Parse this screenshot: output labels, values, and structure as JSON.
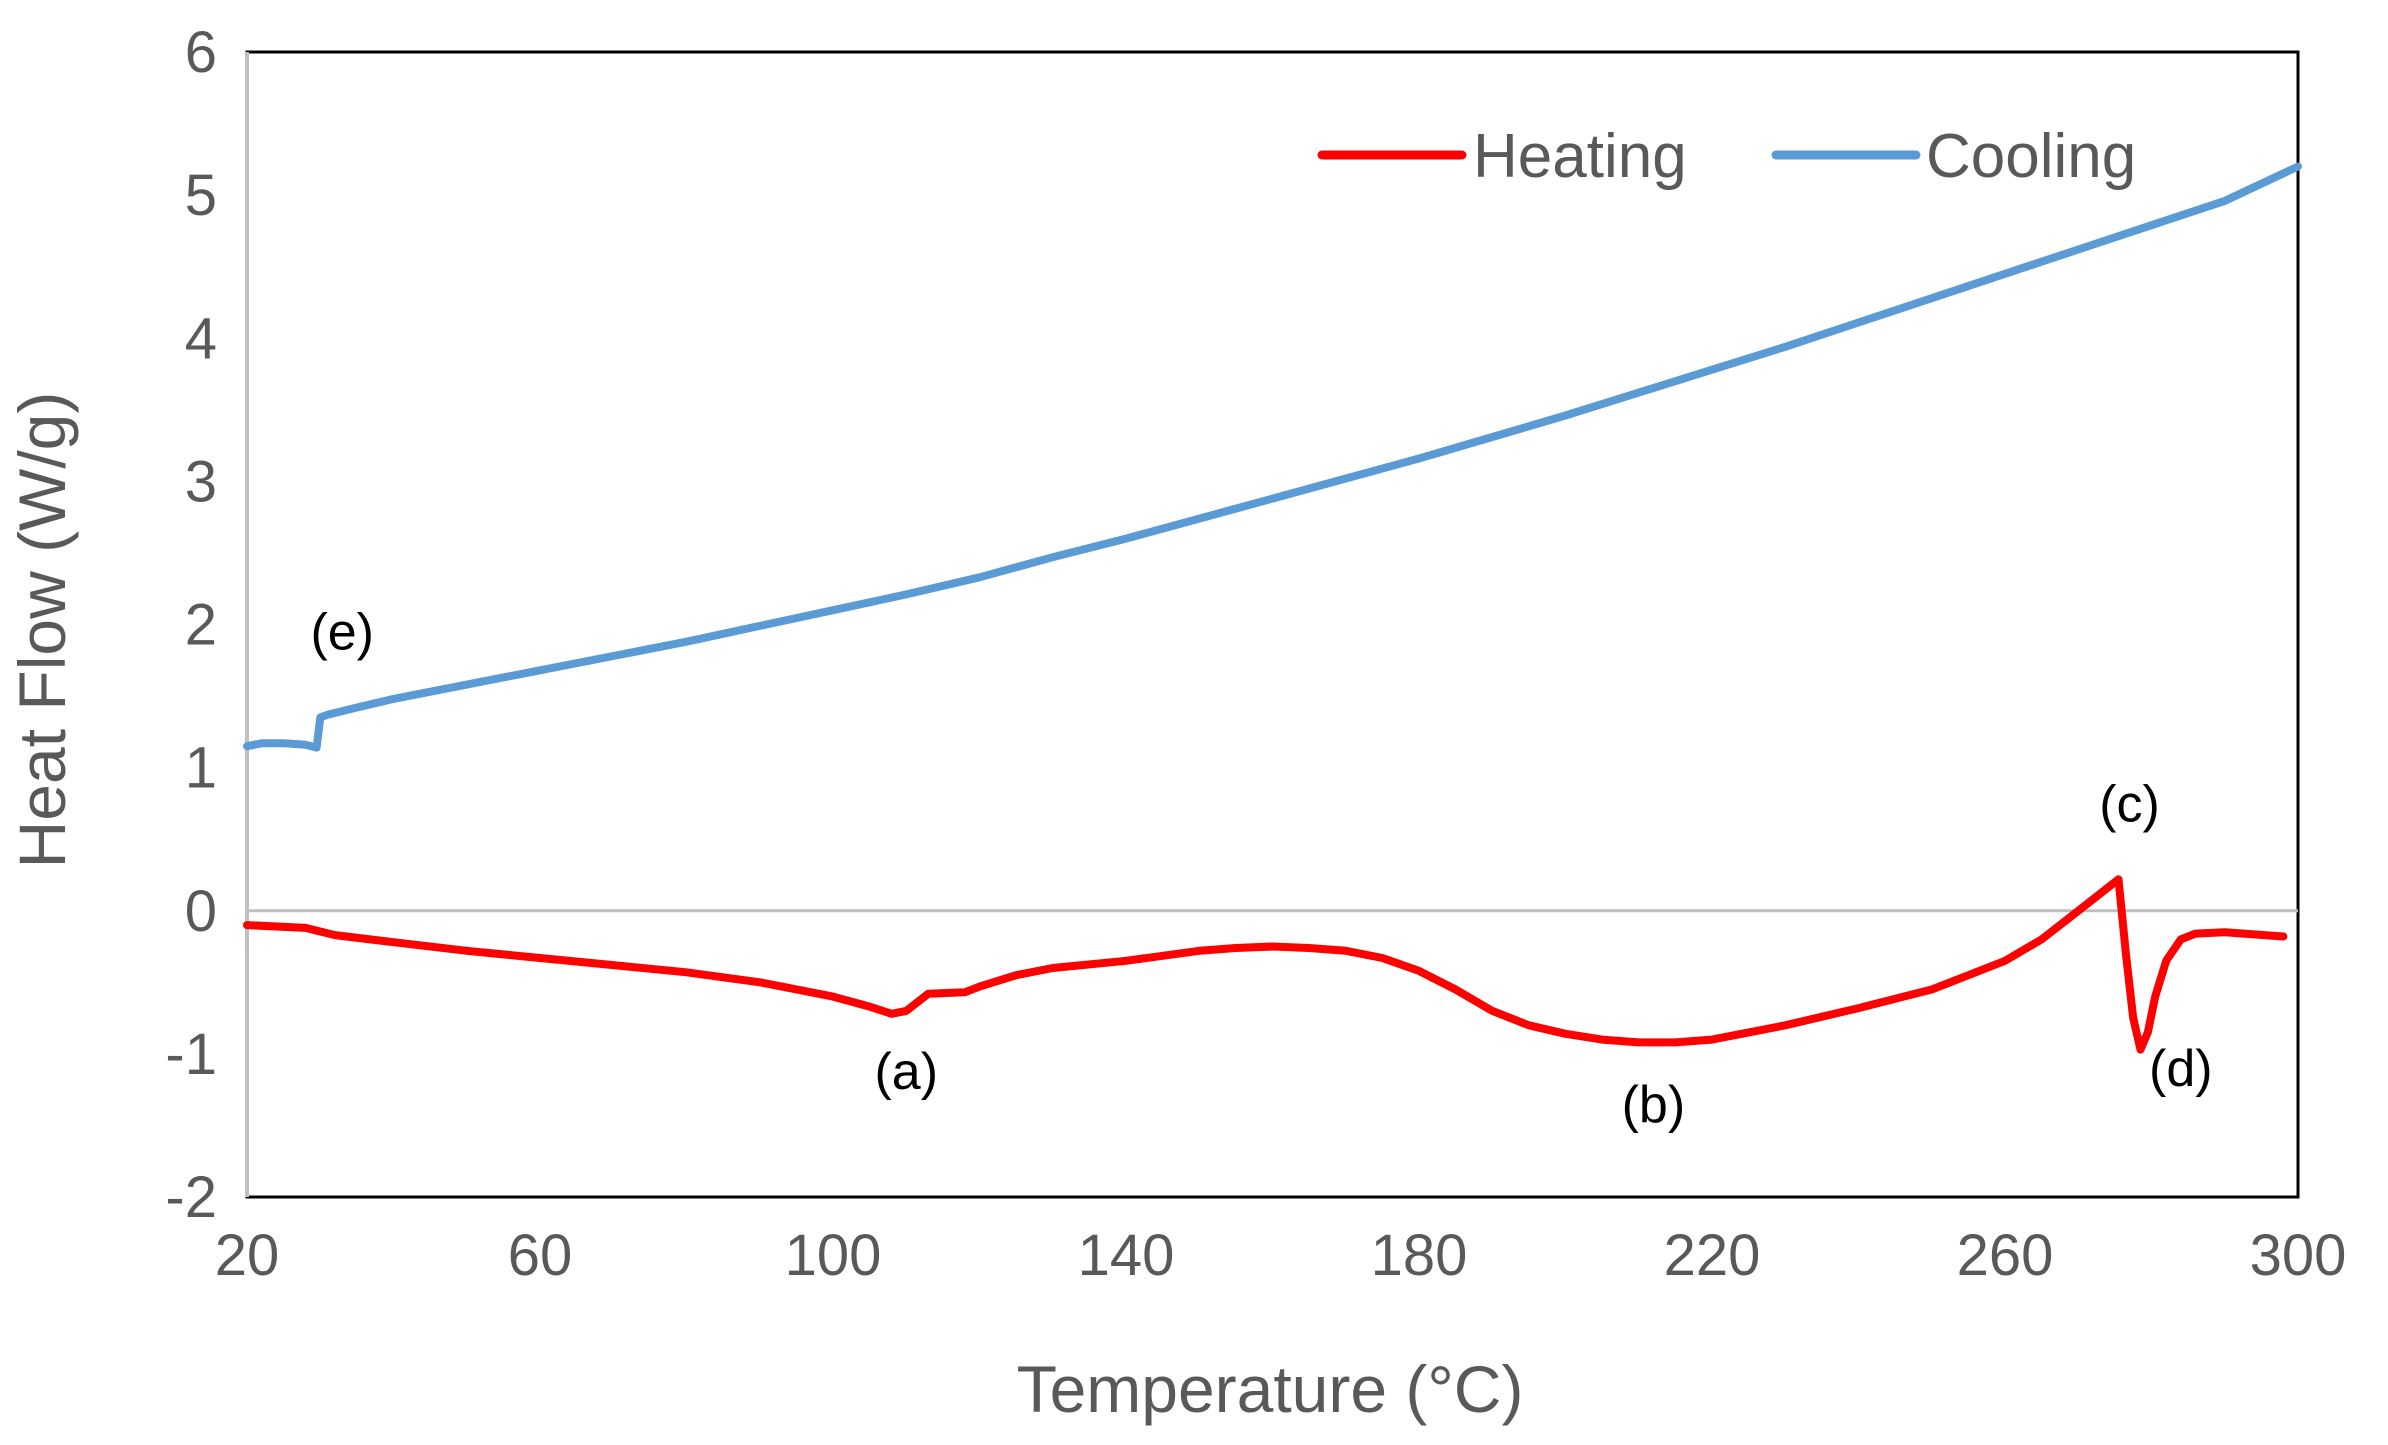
{
  "chart_data": {
    "type": "line",
    "title": "",
    "xlabel": "Temperature (°C)",
    "ylabel": "Heat Flow  (W/g)",
    "xlim": [
      20,
      300
    ],
    "ylim": [
      -2,
      6
    ],
    "xticks": [
      20,
      60,
      100,
      140,
      180,
      220,
      260,
      300
    ],
    "yticks": [
      -2,
      -1,
      0,
      1,
      2,
      3,
      4,
      5,
      6
    ],
    "grid": false,
    "legend_position": "top-right",
    "series": [
      {
        "name": "Heating",
        "color": "#ff0000",
        "x": [
          20,
          28,
          32,
          40,
          50,
          60,
          70,
          80,
          90,
          100,
          105,
          108,
          110,
          113,
          118,
          120,
          125,
          130,
          140,
          150,
          155,
          160,
          165,
          170,
          175,
          180,
          185,
          190,
          195,
          200,
          205,
          210,
          215,
          220,
          230,
          240,
          250,
          255,
          260,
          265,
          270,
          273,
          275.5,
          276.5,
          277.5,
          278.5,
          279.5,
          280.5,
          282,
          284,
          286,
          290,
          298
        ],
        "y": [
          -0.1,
          -0.12,
          -0.17,
          -0.22,
          -0.28,
          -0.33,
          -0.38,
          -0.43,
          -0.5,
          -0.6,
          -0.67,
          -0.72,
          -0.7,
          -0.58,
          -0.57,
          -0.53,
          -0.45,
          -0.4,
          -0.35,
          -0.28,
          -0.26,
          -0.25,
          -0.26,
          -0.28,
          -0.33,
          -0.42,
          -0.55,
          -0.7,
          -0.8,
          -0.86,
          -0.9,
          -0.92,
          -0.92,
          -0.9,
          -0.8,
          -0.68,
          -0.55,
          -0.45,
          -0.35,
          -0.2,
          0.0,
          0.12,
          0.22,
          -0.3,
          -0.75,
          -0.97,
          -0.85,
          -0.6,
          -0.35,
          -0.2,
          -0.16,
          -0.15,
          -0.18
        ]
      },
      {
        "name": "Cooling",
        "color": "#5b9bd5",
        "x": [
          20,
          22,
          25,
          28,
          29.5,
          30,
          31,
          35,
          40,
          50,
          60,
          70,
          80,
          90,
          100,
          110,
          120,
          130,
          140,
          150,
          160,
          170,
          180,
          190,
          200,
          210,
          220,
          230,
          240,
          250,
          260,
          270,
          280,
          290,
          300
        ],
        "y": [
          1.15,
          1.17,
          1.17,
          1.16,
          1.14,
          1.35,
          1.37,
          1.42,
          1.48,
          1.58,
          1.68,
          1.78,
          1.88,
          1.99,
          2.1,
          2.21,
          2.33,
          2.47,
          2.6,
          2.74,
          2.88,
          3.02,
          3.16,
          3.31,
          3.46,
          3.62,
          3.78,
          3.94,
          4.11,
          4.28,
          4.45,
          4.62,
          4.79,
          4.96,
          5.2
        ]
      }
    ],
    "annotations": [
      {
        "text": "(a)",
        "x": 110,
        "y": -1.12
      },
      {
        "text": "(b)",
        "x": 212,
        "y": -1.35
      },
      {
        "text": "(c)",
        "x": 277,
        "y": 0.75
      },
      {
        "text": "(d)",
        "x": 284,
        "y": -1.1
      },
      {
        "text": "(e)",
        "x": 33,
        "y": 1.95
      }
    ]
  }
}
